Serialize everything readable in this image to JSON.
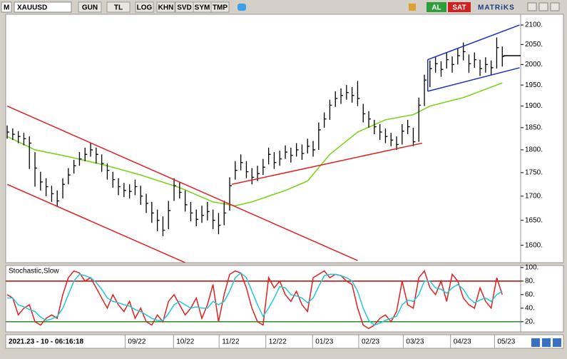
{
  "toolbar": {
    "logo": "M",
    "symbol": "XAUUSD",
    "buttons": [
      "GUN",
      "TL",
      "LOG",
      "KHN",
      "SVD",
      "SYM",
      "TMP"
    ],
    "buy": "AL",
    "sell": "SAT",
    "brand": "MATRiKS"
  },
  "status": "2021.23 - 10 - 06:16:18",
  "chart_data": [
    {
      "type": "ohlc",
      "color": "#000000",
      "log": true,
      "xlim": [
        -0.26,
        92.3
      ],
      "xticks": [
        {
          "value": 21.2,
          "label": "09/22"
        },
        {
          "value": 29.9,
          "label": "10/22"
        },
        {
          "value": 38.1,
          "label": "11/22"
        },
        {
          "value": 46.5,
          "label": "12/22"
        },
        {
          "value": 54.9,
          "label": "01/23"
        },
        {
          "value": 63.2,
          "label": "02/23"
        },
        {
          "value": 71.2,
          "label": "03/23"
        },
        {
          "value": 79.7,
          "label": "04/23"
        },
        {
          "value": 87.6,
          "label": "05/23"
        }
      ],
      "ylim": [
        1566,
        2128
      ],
      "yticks": [
        {
          "value": 1600,
          "label": "1600."
        },
        {
          "value": 1650,
          "label": "1650."
        },
        {
          "value": 1700,
          "label": "1700."
        },
        {
          "value": 1750,
          "label": "1750."
        },
        {
          "value": 1800,
          "label": "1800."
        },
        {
          "value": 1850,
          "label": "1850."
        },
        {
          "value": 1900,
          "label": "1900."
        },
        {
          "value": 1950,
          "label": "1950."
        },
        {
          "value": 2000,
          "label": "2000."
        },
        {
          "value": 2050,
          "label": "2050."
        },
        {
          "value": 2100,
          "label": "2100."
        }
      ],
      "high": [
        1855,
        1848,
        1842,
        1838,
        1830,
        1795,
        1752,
        1738,
        1722,
        1712,
        1738,
        1760,
        1778,
        1795,
        1805,
        1815,
        1805,
        1790,
        1770,
        1752,
        1738,
        1728,
        1725,
        1735,
        1722,
        1705,
        1688,
        1672,
        1658,
        1690,
        1738,
        1730,
        1712,
        1688,
        1672,
        1680,
        1688,
        1672,
        1665,
        1690,
        1740,
        1775,
        1790,
        1775,
        1760,
        1765,
        1780,
        1805,
        1795,
        1798,
        1810,
        1805,
        1815,
        1812,
        1825,
        1820,
        1862,
        1885,
        1915,
        1935,
        1942,
        1950,
        1945,
        1960,
        1905,
        1888,
        1868,
        1858,
        1848,
        1838,
        1830,
        1858,
        1868,
        1850,
        1920,
        1975,
        2010,
        2018,
        2008,
        2030,
        2020,
        2040,
        2055,
        2025,
        2030,
        2012,
        2018,
        2010,
        2068,
        2045
      ],
      "low": [
        1825,
        1822,
        1815,
        1810,
        1758,
        1720,
        1712,
        1700,
        1688,
        1678,
        1695,
        1725,
        1748,
        1765,
        1775,
        1785,
        1770,
        1752,
        1735,
        1718,
        1702,
        1698,
        1695,
        1702,
        1682,
        1665,
        1645,
        1628,
        1618,
        1632,
        1690,
        1695,
        1668,
        1648,
        1638,
        1645,
        1650,
        1632,
        1622,
        1640,
        1670,
        1735,
        1755,
        1738,
        1725,
        1732,
        1745,
        1768,
        1758,
        1765,
        1780,
        1772,
        1785,
        1778,
        1792,
        1785,
        1800,
        1850,
        1868,
        1898,
        1905,
        1915,
        1908,
        1900,
        1862,
        1850,
        1835,
        1822,
        1815,
        1808,
        1800,
        1812,
        1835,
        1808,
        1818,
        1900,
        1945,
        1980,
        1970,
        1990,
        1980,
        2000,
        2010,
        1980,
        1992,
        1972,
        1980,
        1975,
        1990,
        1995
      ],
      "close": [
        1840,
        1835,
        1830,
        1825,
        1815,
        1760,
        1730,
        1720,
        1705,
        1690,
        1725,
        1745,
        1765,
        1780,
        1790,
        1800,
        1790,
        1770,
        1755,
        1735,
        1720,
        1712,
        1710,
        1720,
        1700,
        1685,
        1665,
        1650,
        1630,
        1670,
        1722,
        1708,
        1682,
        1665,
        1652,
        1660,
        1668,
        1650,
        1640,
        1665,
        1722,
        1755,
        1772,
        1752,
        1740,
        1748,
        1762,
        1790,
        1772,
        1780,
        1795,
        1788,
        1800,
        1792,
        1808,
        1800,
        1845,
        1870,
        1902,
        1918,
        1925,
        1932,
        1925,
        1918,
        1882,
        1870,
        1852,
        1840,
        1830,
        1822,
        1812,
        1842,
        1852,
        1818,
        1902,
        1962,
        1990,
        2002,
        1988,
        2012,
        2000,
        2022,
        2032,
        2002,
        2012,
        1990,
        2000,
        1992,
        2042,
        2020
      ],
      "overlays": [
        {
          "color": "#7ed321",
          "x": [
            0,
            5,
            11,
            18,
            24,
            31,
            37,
            41,
            44,
            50,
            54,
            58,
            63,
            68,
            73,
            76,
            82,
            89
          ],
          "values": [
            1830,
            1800,
            1785,
            1765,
            1745,
            1718,
            1688,
            1680,
            1688,
            1712,
            1732,
            1790,
            1840,
            1868,
            1880,
            1900,
            1920,
            1955
          ]
        }
      ],
      "trendlines": [
        {
          "color": "#e02020",
          "from": [
            0,
            1900
          ],
          "to": [
            63,
            1570
          ]
        },
        {
          "color": "#e02020",
          "from": [
            0,
            1725
          ],
          "to": [
            32,
            1566
          ]
        },
        {
          "color": "#e02020",
          "from": [
            40.4,
            1725
          ],
          "to": [
            74.6,
            1815
          ]
        },
        {
          "color": "#1a2fc0",
          "from": [
            75.6,
            2012
          ],
          "to": [
            92.1,
            2100
          ]
        },
        {
          "color": "#1a2fc0",
          "from": [
            75.6,
            1935
          ],
          "to": [
            92.1,
            1992
          ]
        },
        {
          "color": "#1a2fc0",
          "from": [
            75.6,
            2012
          ],
          "to": [
            75.6,
            1935
          ]
        },
        {
          "color": "#000000",
          "from": [
            89.2,
            2022
          ],
          "to": [
            92.3,
            2022
          ]
        }
      ]
    },
    {
      "type": "line",
      "title": "Stochastic,Slow",
      "xlim": [
        -0.26,
        92.3
      ],
      "ylim": [
        5,
        103
      ],
      "yticks": [
        {
          "value": 20,
          "label": "20."
        },
        {
          "value": 40,
          "label": "40."
        },
        {
          "value": 60,
          "label": "60."
        },
        {
          "value": 80,
          "label": "80."
        },
        {
          "value": 100,
          "label": "100."
        }
      ],
      "levels": [
        {
          "value": 80,
          "color": "#c00000"
        },
        {
          "value": 20,
          "color": "#2e8b2e"
        }
      ],
      "series": [
        {
          "color": "#e02020",
          "values": [
            60,
            55,
            30,
            40,
            45,
            20,
            15,
            25,
            30,
            25,
            60,
            85,
            95,
            92,
            80,
            85,
            70,
            55,
            40,
            60,
            45,
            35,
            50,
            25,
            40,
            20,
            15,
            30,
            20,
            50,
            60,
            45,
            30,
            40,
            55,
            25,
            45,
            75,
            20,
            60,
            90,
            95,
            92,
            70,
            40,
            20,
            15,
            85,
            70,
            80,
            60,
            50,
            65,
            45,
            35,
            85,
            90,
            95,
            85,
            90,
            88,
            80,
            75,
            40,
            15,
            10,
            15,
            25,
            30,
            20,
            35,
            80,
            45,
            40,
            85,
            95,
            70,
            60,
            80,
            50,
            90,
            80,
            55,
            45,
            40,
            70,
            50,
            40,
            85,
            60
          ]
        },
        {
          "color": "#20c8d8",
          "values": [
            55,
            55,
            45,
            42,
            38,
            35,
            27,
            22,
            24,
            28,
            40,
            60,
            80,
            90,
            88,
            85,
            78,
            68,
            55,
            50,
            48,
            45,
            43,
            38,
            35,
            30,
            25,
            22,
            22,
            32,
            45,
            50,
            45,
            40,
            42,
            40,
            40,
            50,
            45,
            50,
            65,
            85,
            92,
            85,
            65,
            45,
            28,
            40,
            55,
            72,
            70,
            60,
            58,
            55,
            48,
            55,
            72,
            88,
            90,
            90,
            88,
            85,
            80,
            65,
            40,
            22,
            15,
            18,
            22,
            25,
            28,
            45,
            52,
            50,
            60,
            80,
            80,
            70,
            68,
            62,
            70,
            75,
            68,
            55,
            48,
            52,
            55,
            50,
            60,
            65
          ]
        }
      ]
    }
  ]
}
